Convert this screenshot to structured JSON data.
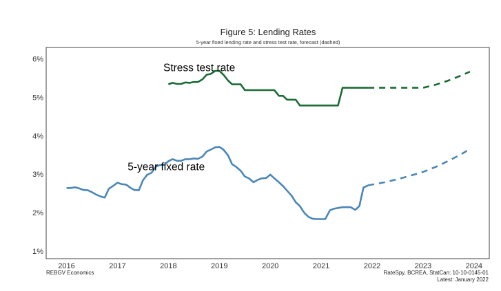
{
  "chart_data": {
    "type": "line",
    "title": "Figure 5: Lending Rates",
    "subtitle": "5-year fixed lending rate and stress test rate, forecast (dashed)",
    "xlabel": "",
    "ylabel": "",
    "xlim": [
      2015.6,
      2024.3
    ],
    "ylim": [
      0.8,
      6.3
    ],
    "x_ticks": [
      "2016",
      "2017",
      "2018",
      "2019",
      "2020",
      "2021",
      "2022",
      "2023",
      "2024"
    ],
    "y_ticks": [
      "1%",
      "2%",
      "3%",
      "4%",
      "5%",
      "6%"
    ],
    "grid": false,
    "legend": "none",
    "series": [
      {
        "name": "Stress test rate",
        "color": "#1a6b34",
        "style": "solid",
        "x": [
          2018.0,
          2018.08,
          2018.17,
          2018.25,
          2018.33,
          2018.42,
          2018.5,
          2018.58,
          2018.67,
          2018.75,
          2018.83,
          2018.92,
          2019.0,
          2019.08,
          2019.17,
          2019.25,
          2019.33,
          2019.42,
          2019.5,
          2019.58,
          2019.67,
          2019.75,
          2019.83,
          2019.92,
          2020.0,
          2020.08,
          2020.17,
          2020.25,
          2020.33,
          2020.42,
          2020.5,
          2020.58,
          2020.67,
          2020.75,
          2020.83,
          2020.92,
          2021.0,
          2021.08,
          2021.17,
          2021.25,
          2021.33,
          2021.42,
          2021.5,
          2021.58,
          2021.67,
          2021.75,
          2021.83,
          2021.92
        ],
        "values": [
          5.34,
          5.38,
          5.35,
          5.35,
          5.39,
          5.38,
          5.4,
          5.4,
          5.47,
          5.59,
          5.61,
          5.69,
          5.69,
          5.59,
          5.44,
          5.34,
          5.34,
          5.34,
          5.19,
          5.19,
          5.19,
          5.19,
          5.19,
          5.19,
          5.19,
          5.19,
          5.04,
          5.04,
          4.94,
          4.94,
          4.94,
          4.79,
          4.79,
          4.79,
          4.79,
          4.79,
          4.79,
          4.79,
          4.79,
          4.79,
          4.79,
          5.25,
          5.25,
          5.25,
          5.25,
          5.25,
          5.25,
          5.25
        ]
      },
      {
        "name": "Stress test rate",
        "color": "#1a6b34",
        "style": "dashed",
        "x": [
          2021.92,
          2022.25,
          2022.5,
          2022.75,
          2023.0,
          2023.25,
          2023.5,
          2023.75,
          2023.92
        ],
        "values": [
          5.25,
          5.25,
          5.25,
          5.25,
          5.25,
          5.33,
          5.44,
          5.57,
          5.67
        ]
      },
      {
        "name": "5-year fixed rate",
        "color": "#4a86b8",
        "style": "solid",
        "x": [
          2016.0,
          2016.08,
          2016.17,
          2016.25,
          2016.33,
          2016.42,
          2016.5,
          2016.58,
          2016.67,
          2016.75,
          2016.83,
          2016.92,
          2017.0,
          2017.08,
          2017.17,
          2017.25,
          2017.33,
          2017.42,
          2017.5,
          2017.58,
          2017.67,
          2017.75,
          2017.83,
          2017.92,
          2018.0,
          2018.08,
          2018.17,
          2018.25,
          2018.33,
          2018.42,
          2018.5,
          2018.58,
          2018.67,
          2018.75,
          2018.83,
          2018.92,
          2019.0,
          2019.08,
          2019.17,
          2019.25,
          2019.33,
          2019.42,
          2019.5,
          2019.58,
          2019.67,
          2019.75,
          2019.83,
          2019.92,
          2020.0,
          2020.08,
          2020.17,
          2020.25,
          2020.33,
          2020.42,
          2020.5,
          2020.58,
          2020.67,
          2020.75,
          2020.83,
          2020.92,
          2021.0,
          2021.08,
          2021.17,
          2021.25,
          2021.33,
          2021.42,
          2021.5,
          2021.58,
          2021.67,
          2021.75,
          2021.83,
          2021.92
        ],
        "values": [
          2.64,
          2.64,
          2.66,
          2.63,
          2.59,
          2.58,
          2.53,
          2.47,
          2.42,
          2.39,
          2.62,
          2.7,
          2.78,
          2.74,
          2.73,
          2.65,
          2.59,
          2.58,
          2.84,
          2.98,
          3.04,
          3.19,
          3.24,
          3.24,
          3.34,
          3.39,
          3.35,
          3.35,
          3.39,
          3.39,
          3.41,
          3.4,
          3.46,
          3.59,
          3.64,
          3.7,
          3.71,
          3.64,
          3.49,
          3.26,
          3.19,
          3.09,
          2.94,
          2.89,
          2.79,
          2.85,
          2.89,
          2.9,
          2.99,
          2.89,
          2.79,
          2.69,
          2.57,
          2.44,
          2.27,
          2.17,
          1.99,
          1.89,
          1.84,
          1.83,
          1.83,
          1.83,
          2.06,
          2.1,
          2.12,
          2.14,
          2.14,
          2.14,
          2.07,
          2.17,
          2.65,
          2.71
        ]
      },
      {
        "name": "5-year fixed rate",
        "color": "#4a86b8",
        "style": "dashed",
        "x": [
          2021.92,
          2022.25,
          2022.5,
          2022.75,
          2023.0,
          2023.25,
          2023.5,
          2023.75,
          2023.92
        ],
        "values": [
          2.71,
          2.79,
          2.87,
          2.96,
          3.06,
          3.19,
          3.35,
          3.52,
          3.66
        ]
      }
    ],
    "annotations": [
      {
        "text": "Stress test rate",
        "x": 2017.9,
        "y": 5.68
      },
      {
        "text": "5-year fixed rate",
        "x": 2017.2,
        "y": 3.1
      }
    ],
    "source_left": "REBGV Economics",
    "source_right_1": "RateSpy, BCREA, StatCan: 10-10-0145-01",
    "source_right_2": "Latest: January 2022"
  }
}
